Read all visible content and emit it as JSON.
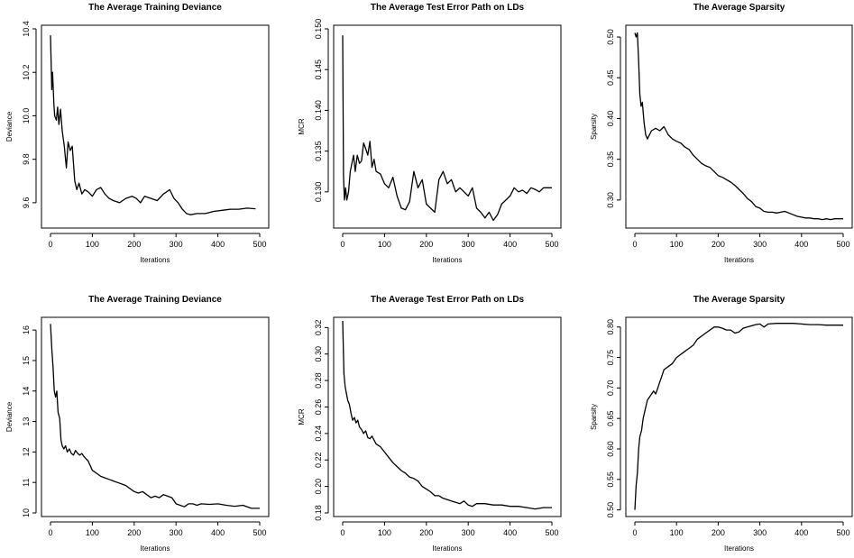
{
  "chart_data": [
    {
      "type": "line",
      "title": "The Average Training Deviance",
      "xlabel": "Iterations",
      "ylabel": "Deviance",
      "xlim": [
        0,
        500
      ],
      "ylim": [
        9.5,
        10.4
      ],
      "xticks": [
        0,
        100,
        200,
        300,
        400,
        500
      ],
      "yticks": [
        9.6,
        9.8,
        10.0,
        10.2,
        10.4
      ],
      "ytick_labels": [
        "9.6",
        "9.8",
        "10.0",
        "10.2",
        "10.4"
      ],
      "grid": false,
      "series": [
        {
          "x": [
            0,
            3,
            5,
            8,
            10,
            14,
            17,
            20,
            24,
            28,
            33,
            38,
            42,
            47,
            52,
            58,
            63,
            68,
            75,
            82,
            90,
            100,
            110,
            120,
            130,
            140,
            150,
            165,
            180,
            195,
            205,
            215,
            225,
            240,
            255,
            270,
            285,
            295,
            305,
            315,
            325,
            335,
            350,
            370,
            390,
            410,
            430,
            450,
            470,
            490
          ],
          "y": [
            10.37,
            10.12,
            10.2,
            10.06,
            10.0,
            9.98,
            10.04,
            9.96,
            10.03,
            9.93,
            9.86,
            9.76,
            9.88,
            9.84,
            9.86,
            9.7,
            9.66,
            9.69,
            9.64,
            9.66,
            9.65,
            9.63,
            9.66,
            9.67,
            9.64,
            9.62,
            9.61,
            9.6,
            9.62,
            9.63,
            9.62,
            9.6,
            9.63,
            9.62,
            9.61,
            9.64,
            9.66,
            9.62,
            9.6,
            9.57,
            9.55,
            9.545,
            9.55,
            9.55,
            9.56,
            9.565,
            9.57,
            9.57,
            9.575,
            9.572
          ]
        }
      ]
    },
    {
      "type": "line",
      "title": "The Average Test Error Path on LDs",
      "xlabel": "Iterations",
      "ylabel": "MCR",
      "xlim": [
        0,
        500
      ],
      "ylim": [
        0.126,
        0.15
      ],
      "xticks": [
        0,
        100,
        200,
        300,
        400,
        500
      ],
      "yticks": [
        0.13,
        0.135,
        0.14,
        0.145,
        0.15
      ],
      "ytick_labels": [
        "0.130",
        "0.135",
        "0.140",
        "0.145",
        "0.150"
      ],
      "grid": false,
      "series": [
        {
          "x": [
            0,
            2,
            4,
            7,
            10,
            14,
            18,
            22,
            26,
            30,
            35,
            40,
            45,
            50,
            55,
            60,
            65,
            70,
            75,
            80,
            90,
            100,
            110,
            120,
            130,
            140,
            150,
            160,
            170,
            180,
            190,
            200,
            210,
            220,
            230,
            240,
            250,
            260,
            270,
            280,
            290,
            300,
            310,
            320,
            330,
            340,
            350,
            360,
            370,
            380,
            390,
            400,
            410,
            420,
            430,
            440,
            450,
            460,
            470,
            480,
            490,
            500
          ],
          "y": [
            0.1492,
            0.132,
            0.129,
            0.1305,
            0.129,
            0.13,
            0.1325,
            0.1335,
            0.1345,
            0.1325,
            0.1345,
            0.1335,
            0.1338,
            0.136,
            0.1353,
            0.1345,
            0.1362,
            0.133,
            0.134,
            0.1325,
            0.1322,
            0.131,
            0.1305,
            0.1318,
            0.1295,
            0.128,
            0.1278,
            0.1288,
            0.1325,
            0.1305,
            0.1315,
            0.1285,
            0.128,
            0.1275,
            0.1315,
            0.1325,
            0.131,
            0.1315,
            0.13,
            0.1305,
            0.13,
            0.1295,
            0.1305,
            0.128,
            0.1275,
            0.1268,
            0.1275,
            0.1265,
            0.1272,
            0.1285,
            0.129,
            0.1295,
            0.1305,
            0.13,
            0.1302,
            0.1298,
            0.1305,
            0.1303,
            0.13,
            0.1305,
            0.1305,
            0.1305
          ]
        }
      ]
    },
    {
      "type": "line",
      "title": "The Average Sparsity",
      "xlabel": "Iterations",
      "ylabel": "Sparsity",
      "xlim": [
        0,
        500
      ],
      "ylim": [
        0.27,
        0.51
      ],
      "xticks": [
        0,
        100,
        200,
        300,
        400,
        500
      ],
      "yticks": [
        0.3,
        0.35,
        0.4,
        0.45,
        0.5
      ],
      "ytick_labels": [
        "0.30",
        "0.35",
        "0.40",
        "0.45",
        "0.50"
      ],
      "grid": false,
      "series": [
        {
          "x": [
            0,
            3,
            6,
            9,
            12,
            15,
            18,
            22,
            26,
            30,
            35,
            40,
            50,
            60,
            70,
            80,
            90,
            100,
            110,
            120,
            130,
            140,
            150,
            160,
            170,
            180,
            190,
            200,
            210,
            220,
            230,
            240,
            250,
            260,
            270,
            280,
            290,
            300,
            310,
            320,
            330,
            340,
            350,
            360,
            370,
            380,
            390,
            400,
            410,
            420,
            430,
            440,
            450,
            460,
            470,
            480,
            490,
            500
          ],
          "y": [
            0.505,
            0.5,
            0.505,
            0.47,
            0.43,
            0.415,
            0.42,
            0.395,
            0.38,
            0.375,
            0.38,
            0.385,
            0.388,
            0.385,
            0.39,
            0.38,
            0.375,
            0.372,
            0.37,
            0.365,
            0.362,
            0.355,
            0.35,
            0.345,
            0.342,
            0.34,
            0.335,
            0.33,
            0.328,
            0.325,
            0.322,
            0.318,
            0.313,
            0.308,
            0.302,
            0.298,
            0.292,
            0.29,
            0.286,
            0.285,
            0.285,
            0.284,
            0.285,
            0.286,
            0.284,
            0.282,
            0.28,
            0.279,
            0.278,
            0.278,
            0.277,
            0.277,
            0.276,
            0.277,
            0.276,
            0.277,
            0.277,
            0.277
          ]
        }
      ]
    },
    {
      "type": "line",
      "title": "The Average Training Deviance",
      "xlabel": "Iterations",
      "ylabel": "Deviance",
      "xlim": [
        0,
        500
      ],
      "ylim": [
        10,
        16.3
      ],
      "xticks": [
        0,
        100,
        200,
        300,
        400,
        500
      ],
      "yticks": [
        10,
        11,
        12,
        13,
        14,
        15,
        16
      ],
      "ytick_labels": [
        "10",
        "11",
        "12",
        "13",
        "14",
        "15",
        "16"
      ],
      "grid": false,
      "series": [
        {
          "x": [
            0,
            3,
            6,
            9,
            12,
            15,
            18,
            22,
            25,
            28,
            32,
            36,
            40,
            45,
            50,
            55,
            60,
            65,
            70,
            75,
            80,
            90,
            100,
            110,
            120,
            130,
            140,
            150,
            160,
            170,
            180,
            190,
            200,
            210,
            220,
            230,
            240,
            250,
            260,
            270,
            280,
            290,
            300,
            310,
            320,
            330,
            340,
            350,
            360,
            380,
            400,
            420,
            440,
            460,
            480,
            490,
            500
          ],
          "y": [
            16.2,
            15.4,
            14.8,
            14.0,
            13.8,
            14.0,
            13.3,
            13.1,
            12.4,
            12.2,
            12.1,
            12.2,
            12.0,
            12.1,
            11.95,
            11.9,
            12.05,
            11.95,
            11.9,
            11.95,
            11.85,
            11.7,
            11.4,
            11.3,
            11.2,
            11.15,
            11.1,
            11.05,
            11.0,
            10.95,
            10.9,
            10.8,
            10.7,
            10.65,
            10.7,
            10.6,
            10.5,
            10.55,
            10.5,
            10.6,
            10.55,
            10.5,
            10.3,
            10.25,
            10.2,
            10.3,
            10.3,
            10.25,
            10.3,
            10.28,
            10.3,
            10.25,
            10.22,
            10.25,
            10.15,
            10.15,
            10.15
          ]
        }
      ]
    },
    {
      "type": "line",
      "title": "The Average Test Error Path on LDs",
      "xlabel": "Iterations",
      "ylabel": "MCR",
      "xlim": [
        0,
        500
      ],
      "ylim": [
        0.18,
        0.325
      ],
      "xticks": [
        0,
        100,
        200,
        300,
        400,
        500
      ],
      "yticks": [
        0.18,
        0.2,
        0.22,
        0.24,
        0.26,
        0.28,
        0.3,
        0.32
      ],
      "ytick_labels": [
        "0.18",
        "0.20",
        "0.22",
        "0.24",
        "0.26",
        "0.28",
        "0.30",
        "0.32"
      ],
      "grid": false,
      "series": [
        {
          "x": [
            0,
            3,
            6,
            9,
            12,
            16,
            20,
            24,
            28,
            32,
            36,
            40,
            45,
            50,
            55,
            60,
            65,
            70,
            80,
            90,
            100,
            110,
            120,
            130,
            140,
            150,
            160,
            170,
            180,
            190,
            200,
            210,
            220,
            230,
            240,
            250,
            260,
            270,
            280,
            290,
            300,
            310,
            320,
            340,
            360,
            380,
            400,
            420,
            440,
            460,
            480,
            490,
            500
          ],
          "y": [
            0.325,
            0.285,
            0.275,
            0.27,
            0.265,
            0.262,
            0.255,
            0.25,
            0.252,
            0.248,
            0.25,
            0.245,
            0.243,
            0.24,
            0.242,
            0.237,
            0.236,
            0.238,
            0.232,
            0.23,
            0.226,
            0.222,
            0.218,
            0.215,
            0.212,
            0.21,
            0.207,
            0.206,
            0.204,
            0.2,
            0.198,
            0.196,
            0.193,
            0.193,
            0.191,
            0.19,
            0.189,
            0.188,
            0.187,
            0.189,
            0.186,
            0.185,
            0.187,
            0.187,
            0.186,
            0.186,
            0.185,
            0.185,
            0.184,
            0.183,
            0.184,
            0.184,
            0.184
          ]
        }
      ]
    },
    {
      "type": "line",
      "title": "The Average Sparsity",
      "xlabel": "Iterations",
      "ylabel": "Sparsity",
      "xlim": [
        0,
        500
      ],
      "ylim": [
        0.495,
        0.81
      ],
      "xticks": [
        0,
        100,
        200,
        300,
        400,
        500
      ],
      "yticks": [
        0.5,
        0.55,
        0.6,
        0.65,
        0.7,
        0.75,
        0.8
      ],
      "ytick_labels": [
        "0.50",
        "0.55",
        "0.60",
        "0.65",
        "0.70",
        "0.75",
        "0.80"
      ],
      "grid": false,
      "series": [
        {
          "x": [
            0,
            3,
            6,
            9,
            12,
            16,
            20,
            25,
            30,
            35,
            40,
            45,
            50,
            55,
            60,
            65,
            70,
            80,
            90,
            100,
            110,
            120,
            130,
            140,
            150,
            160,
            170,
            180,
            190,
            200,
            210,
            220,
            230,
            240,
            250,
            260,
            270,
            280,
            290,
            300,
            310,
            320,
            340,
            360,
            380,
            400,
            420,
            440,
            460,
            480,
            490,
            500
          ],
          "y": [
            0.5,
            0.54,
            0.56,
            0.6,
            0.62,
            0.63,
            0.65,
            0.665,
            0.68,
            0.685,
            0.69,
            0.695,
            0.69,
            0.7,
            0.71,
            0.72,
            0.73,
            0.735,
            0.74,
            0.75,
            0.755,
            0.76,
            0.765,
            0.77,
            0.78,
            0.785,
            0.79,
            0.795,
            0.8,
            0.8,
            0.798,
            0.795,
            0.795,
            0.79,
            0.792,
            0.798,
            0.8,
            0.802,
            0.804,
            0.805,
            0.8,
            0.805,
            0.806,
            0.806,
            0.806,
            0.805,
            0.804,
            0.804,
            0.803,
            0.803,
            0.803,
            0.803
          ]
        }
      ]
    }
  ]
}
